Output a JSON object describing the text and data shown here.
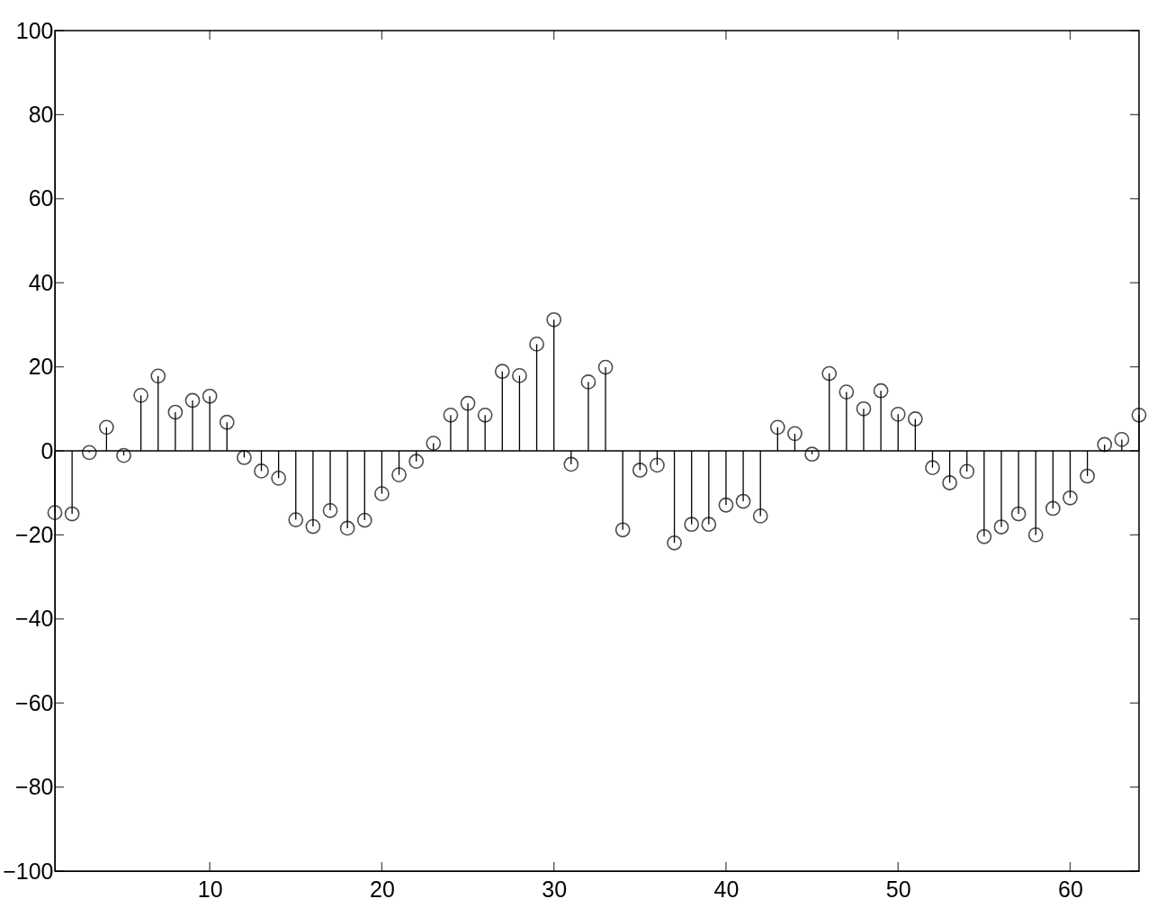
{
  "chart_data": {
    "type": "lollipop",
    "x": [
      1,
      2,
      3,
      4,
      5,
      6,
      7,
      8,
      9,
      10,
      11,
      12,
      13,
      14,
      15,
      16,
      17,
      18,
      19,
      20,
      21,
      22,
      23,
      24,
      25,
      26,
      27,
      28,
      29,
      30,
      31,
      32,
      33,
      34,
      35,
      36,
      37,
      38,
      39,
      40,
      41,
      42,
      43,
      44,
      45,
      46,
      47,
      48,
      49,
      50,
      51,
      52,
      53,
      54,
      55,
      56,
      57,
      58,
      59,
      60,
      61,
      62,
      63,
      64
    ],
    "series": [
      {
        "color": "#000000",
        "values": [
          -14.7,
          -15,
          -0.4,
          5.6,
          -1.1,
          13.2,
          17.8,
          9.2,
          12,
          13,
          6.8,
          -1.6,
          -4.8,
          -6.5,
          -16.4,
          -18,
          -14.2,
          -18.4,
          -16.5,
          -10.2,
          -5.7,
          -2.5,
          1.8,
          8.5,
          11.3,
          8.5,
          18.9,
          17.9,
          25.4,
          31.2,
          -3.2,
          16.4,
          19.9,
          -18.8,
          -4.6,
          -3.4,
          -21.9,
          -17.5,
          -17.5,
          -12.9,
          -12,
          -15.5,
          5.6,
          4.1,
          -0.8,
          18.4,
          14,
          10,
          14.3,
          8.7,
          7.6,
          -4,
          -7.6,
          -4.9,
          -20.4,
          -18.1,
          -15,
          -20,
          -13.7,
          -11.2,
          -6,
          1.5,
          2.7,
          8.5
        ]
      }
    ],
    "ref_lines": [
      {
        "axis": "y",
        "value": 0,
        "color": "#000000"
      }
    ],
    "marker": "circle",
    "xlim": [
      1,
      64
    ],
    "xticks": [
      10,
      20,
      30,
      40,
      50,
      60
    ],
    "ylim": [
      -100,
      100
    ],
    "yticks": [
      -100,
      -80,
      -60,
      -40,
      -20,
      0,
      20,
      40,
      60,
      80,
      100
    ],
    "grid": false
  }
}
